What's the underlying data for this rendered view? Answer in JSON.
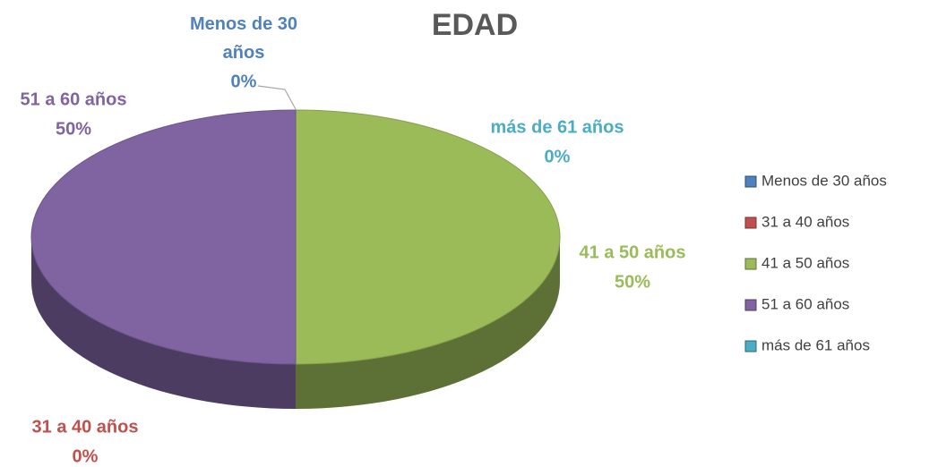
{
  "chart_data": {
    "type": "pie3d",
    "title": "EDAD",
    "categories": [
      "Menos de 30 años",
      "31 a 40 años",
      "41 a 50 años",
      "51 a 60 años",
      "más de 61 años"
    ],
    "values": [
      0,
      0,
      50,
      50,
      0
    ],
    "value_labels": [
      "0%",
      "0%",
      "50%",
      "50%",
      "0%"
    ],
    "colors": [
      "#4f81bd",
      "#c0504d",
      "#9bbb59",
      "#8064a2",
      "#4bacc6"
    ],
    "legend": "right"
  }
}
